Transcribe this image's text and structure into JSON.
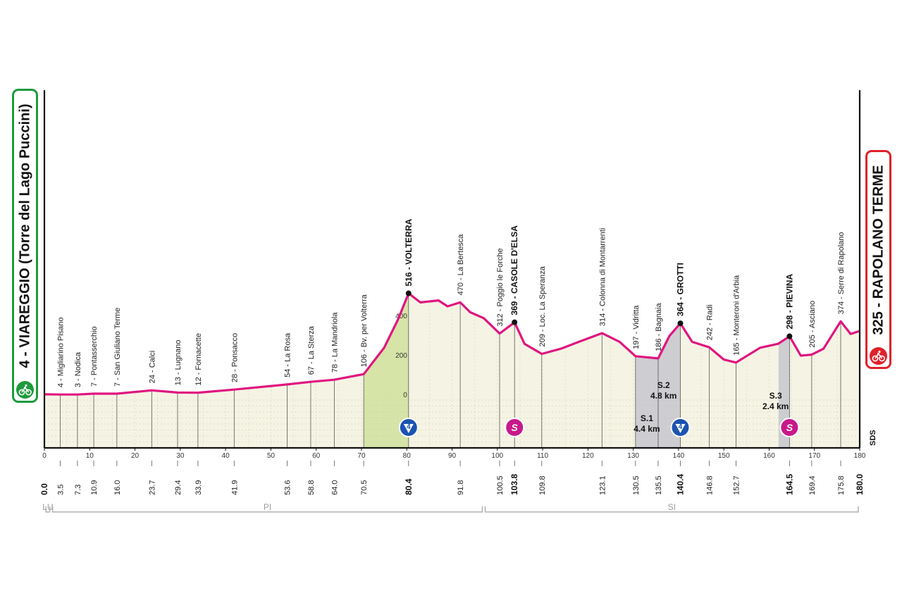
{
  "start": {
    "label": "4 - VIAREGGIO (Torre del Lago Puccini)"
  },
  "finish": {
    "label": "325 - RAPOLANO TERME"
  },
  "sds_label": "SDS",
  "province_labels": [
    "LU",
    "PI",
    "SI"
  ],
  "colors": {
    "profile_line": "#e0157f",
    "ground": "#f5f4e4",
    "climb_green": "#d6e4a8",
    "climb_gray": "#cdcdd2",
    "sprint": "#c8198a",
    "kom": "#1b54b0",
    "start": "#1e9a3c",
    "finish": "#e0202a"
  },
  "chart_data": {
    "type": "area",
    "xlim": [
      0,
      180
    ],
    "ylim": [
      0,
      600
    ],
    "x_ticks": [
      0,
      10,
      20,
      30,
      40,
      50,
      60,
      70,
      80,
      90,
      100,
      110,
      120,
      130,
      140,
      150,
      160,
      170,
      180
    ],
    "y_ticks": [
      0,
      200,
      400
    ],
    "profile": [
      [
        0,
        4
      ],
      [
        3.5,
        3
      ],
      [
        7.3,
        3
      ],
      [
        10.9,
        7
      ],
      [
        16,
        7
      ],
      [
        23.7,
        24
      ],
      [
        29.4,
        13
      ],
      [
        33.9,
        12
      ],
      [
        41.9,
        28
      ],
      [
        53.6,
        54
      ],
      [
        58.8,
        67
      ],
      [
        64,
        78
      ],
      [
        70.5,
        106
      ],
      [
        75,
        240
      ],
      [
        78,
        380
      ],
      [
        80.4,
        516
      ],
      [
        83,
        470
      ],
      [
        87,
        480
      ],
      [
        89,
        450
      ],
      [
        91.8,
        470
      ],
      [
        94,
        420
      ],
      [
        97,
        390
      ],
      [
        100.5,
        312
      ],
      [
        103.8,
        369
      ],
      [
        106,
        260
      ],
      [
        109.8,
        209
      ],
      [
        114,
        235
      ],
      [
        118,
        270
      ],
      [
        123.1,
        314
      ],
      [
        127,
        270
      ],
      [
        130.5,
        197
      ],
      [
        135.5,
        186
      ],
      [
        138,
        300
      ],
      [
        140.4,
        364
      ],
      [
        143,
        270
      ],
      [
        146.8,
        242
      ],
      [
        150,
        180
      ],
      [
        152.7,
        165
      ],
      [
        158,
        240
      ],
      [
        162,
        260
      ],
      [
        164.5,
        298
      ],
      [
        167,
        200
      ],
      [
        169.4,
        205
      ],
      [
        172,
        235
      ],
      [
        175.8,
        374
      ],
      [
        178,
        310
      ],
      [
        180,
        325
      ]
    ],
    "locations": [
      {
        "km": 3.5,
        "label": "4 - Migliarino Pisano",
        "km_label": "3.5",
        "bold": false
      },
      {
        "km": 7.3,
        "label": "3 - Nodica",
        "km_label": "7.3",
        "bold": false
      },
      {
        "km": 10.9,
        "label": "7 - Pontasserchio",
        "km_label": "10.9",
        "bold": false
      },
      {
        "km": 16.0,
        "label": "7 - San Giuliano Terme",
        "km_label": "16.0",
        "bold": false
      },
      {
        "km": 23.7,
        "label": "24 - Calci",
        "km_label": "23.7",
        "bold": false
      },
      {
        "km": 29.4,
        "label": "13 - Lugnano",
        "km_label": "29.4",
        "bold": false
      },
      {
        "km": 33.9,
        "label": "12 - Fornacette",
        "km_label": "33.9",
        "bold": false
      },
      {
        "km": 41.9,
        "label": "28 - Ponsacco",
        "km_label": "41.9",
        "bold": false
      },
      {
        "km": 53.6,
        "label": "54 - La Rosa",
        "km_label": "53.6",
        "bold": false
      },
      {
        "km": 58.8,
        "label": "67 - La Sterza",
        "km_label": "58.8",
        "bold": false
      },
      {
        "km": 64.0,
        "label": "78 - La Mandriola",
        "km_label": "64.0",
        "bold": false
      },
      {
        "km": 70.5,
        "label": "106 - Bv. per Volterra",
        "km_label": "70.5",
        "bold": false
      },
      {
        "km": 80.4,
        "label": "516 - VOLTERRA",
        "km_label": "80.4",
        "bold": true
      },
      {
        "km": 91.8,
        "label": "470 - La Bertesca",
        "km_label": "91.8",
        "bold": false
      },
      {
        "km": 100.5,
        "label": "312 - Poggio le Forche",
        "km_label": "100.5",
        "bold": false
      },
      {
        "km": 103.8,
        "label": "369 - CASOLE D'ELSA",
        "km_label": "103.8",
        "bold": true
      },
      {
        "km": 109.8,
        "label": "209 - Loc. La Speranza",
        "km_label": "109.8",
        "bold": false
      },
      {
        "km": 123.1,
        "label": "314 - Colonna di Montarrenti",
        "km_label": "123.1",
        "bold": false
      },
      {
        "km": 130.5,
        "label": "197 - Vidritta",
        "km_label": "130.5",
        "bold": false
      },
      {
        "km": 135.5,
        "label": "186 - Bagnaia",
        "km_label": "135.5",
        "bold": false
      },
      {
        "km": 140.4,
        "label": "364 - GROTTI",
        "km_label": "140.4",
        "bold": true
      },
      {
        "km": 146.8,
        "label": "242 - Radi",
        "km_label": "146.8",
        "bold": false
      },
      {
        "km": 152.7,
        "label": "165 - Monteroni d'Arbia",
        "km_label": "152.7",
        "bold": false
      },
      {
        "km": 164.5,
        "label": "298 - PIEVINA",
        "km_label": "164.5",
        "bold": true
      },
      {
        "km": 169.4,
        "label": "205 - Asciano",
        "km_label": "169.4",
        "bold": false
      },
      {
        "km": 175.8,
        "label": "374 - Serre di Rapolano",
        "km_label": "175.8",
        "bold": false
      }
    ],
    "endpoint_kms": [
      {
        "km": 0,
        "km_label": "0.0"
      },
      {
        "km": 180,
        "km_label": "180.0"
      }
    ],
    "climbs": [
      {
        "from": 70.5,
        "to": 80.4,
        "category": "4"
      },
      {
        "from": 138,
        "to": 140.4,
        "category": "4"
      }
    ],
    "sterrato": [
      {
        "from": 130.5,
        "to": 135.5,
        "name": "S.1",
        "length": "4.4 km"
      },
      {
        "from": 135.5,
        "to": 140.4,
        "name": "S.2",
        "length": "4.8 km"
      },
      {
        "from": 162.1,
        "to": 164.5,
        "name": "S.3",
        "length": "2.4 km"
      }
    ],
    "markers": [
      {
        "km": 80.4,
        "type": "kom",
        "label": "4"
      },
      {
        "km": 103.8,
        "type": "sprint",
        "label": "S"
      },
      {
        "km": 140.4,
        "type": "kom",
        "label": "4"
      },
      {
        "km": 164.5,
        "type": "sprint",
        "label": "S"
      }
    ],
    "provinces": [
      {
        "from": 0,
        "to": 1.5,
        "label": "LU"
      },
      {
        "from": 1.5,
        "to": 97,
        "label": "PI"
      },
      {
        "from": 97,
        "to": 180,
        "label": "SI"
      }
    ]
  }
}
